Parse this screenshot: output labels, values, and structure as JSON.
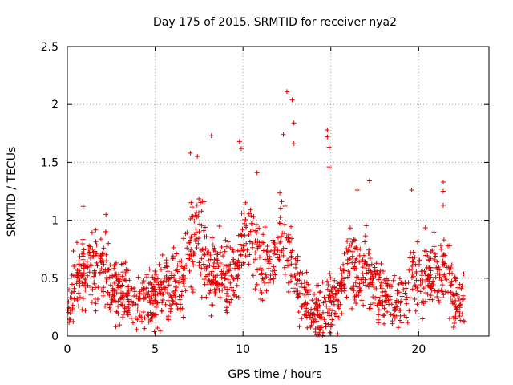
{
  "chart_data": {
    "type": "scatter",
    "title": "Day 175 of 2015, SRMTID for receiver nya2",
    "xlabel": "GPS time / hours",
    "ylabel": "SRMTID / TECUs",
    "xlim": [
      0,
      24
    ],
    "ylim": [
      0,
      2.5
    ],
    "x_ticks": [
      0,
      5,
      10,
      15,
      20
    ],
    "x_tick_labels": [
      "0",
      "5",
      "10",
      "15",
      "20"
    ],
    "y_ticks": [
      0,
      0.5,
      1,
      1.5,
      2,
      2.5
    ],
    "y_tick_labels": [
      "0",
      "0.5",
      "1",
      "1.5",
      "2",
      "2.5"
    ],
    "grid": true,
    "marker": "+",
    "color": "#e00000",
    "x_extent": [
      0.0,
      22.6
    ],
    "anchor_points": [
      {
        "x": 8.2,
        "y": 1.73
      },
      {
        "x": 9.8,
        "y": 1.68
      },
      {
        "x": 9.9,
        "y": 1.62
      },
      {
        "x": 12.3,
        "y": 1.74
      },
      {
        "x": 12.5,
        "y": 2.11
      },
      {
        "x": 12.8,
        "y": 2.04
      },
      {
        "x": 12.9,
        "y": 1.84
      },
      {
        "x": 12.9,
        "y": 1.66
      },
      {
        "x": 14.8,
        "y": 1.78
      },
      {
        "x": 14.8,
        "y": 1.72
      },
      {
        "x": 14.9,
        "y": 1.63
      },
      {
        "x": 14.9,
        "y": 1.46
      },
      {
        "x": 7.0,
        "y": 1.58
      },
      {
        "x": 7.4,
        "y": 1.55
      },
      {
        "x": 0.9,
        "y": 1.12
      },
      {
        "x": 2.2,
        "y": 1.05
      },
      {
        "x": 21.4,
        "y": 1.33
      },
      {
        "x": 21.4,
        "y": 1.25
      },
      {
        "x": 21.4,
        "y": 1.13
      },
      {
        "x": 19.6,
        "y": 1.26
      },
      {
        "x": 17.2,
        "y": 1.34
      },
      {
        "x": 16.5,
        "y": 1.26
      },
      {
        "x": 10.8,
        "y": 1.41
      }
    ],
    "series_name": "SRMTID"
  }
}
